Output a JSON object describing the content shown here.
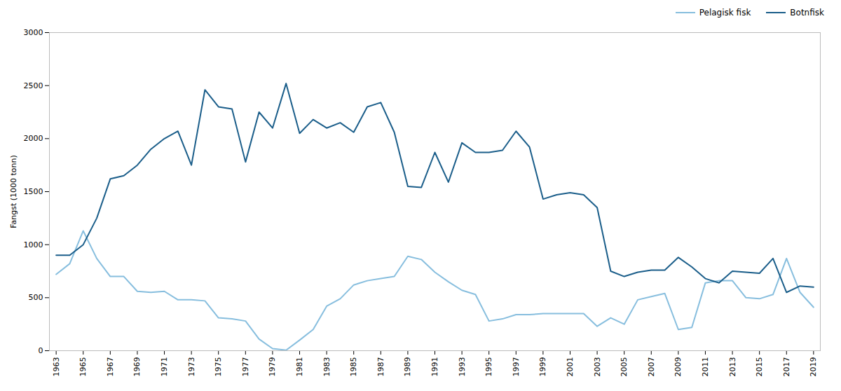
{
  "chart_data": {
    "type": "line",
    "x": [
      1963,
      1964,
      1965,
      1966,
      1967,
      1968,
      1969,
      1970,
      1971,
      1972,
      1973,
      1974,
      1975,
      1976,
      1977,
      1978,
      1979,
      1980,
      1981,
      1982,
      1983,
      1984,
      1985,
      1986,
      1987,
      1988,
      1989,
      1990,
      1991,
      1992,
      1993,
      1994,
      1995,
      1996,
      1997,
      1998,
      1999,
      2000,
      2001,
      2002,
      2003,
      2004,
      2005,
      2006,
      2007,
      2008,
      2009,
      2010,
      2011,
      2012,
      2013,
      2014,
      2015,
      2016,
      2017,
      2018,
      2019
    ],
    "series": [
      {
        "name": "Pelagisk fisk",
        "color": "#87bede",
        "values": [
          720,
          820,
          1130,
          870,
          700,
          700,
          560,
          550,
          560,
          480,
          480,
          470,
          310,
          300,
          280,
          110,
          20,
          5,
          100,
          200,
          420,
          490,
          620,
          660,
          680,
          700,
          890,
          860,
          740,
          650,
          570,
          530,
          280,
          300,
          340,
          340,
          350,
          350,
          350,
          350,
          230,
          310,
          250,
          480,
          510,
          540,
          200,
          220,
          640,
          660,
          660,
          500,
          490,
          530,
          870,
          550,
          410
        ]
      },
      {
        "name": "Botnfisk",
        "color": "#1b5e8a",
        "values": [
          900,
          900,
          1000,
          1250,
          1620,
          1650,
          1750,
          1900,
          2000,
          2070,
          1750,
          2460,
          2300,
          2280,
          1780,
          2250,
          2100,
          2520,
          2050,
          2180,
          2100,
          2150,
          2060,
          2300,
          2340,
          2060,
          1550,
          1540,
          1870,
          1590,
          1960,
          1870,
          1870,
          1890,
          2070,
          1920,
          1430,
          1470,
          1490,
          1470,
          1350,
          750,
          700,
          740,
          760,
          760,
          880,
          790,
          680,
          640,
          750,
          740,
          730,
          870,
          550,
          610,
          600
        ]
      }
    ],
    "ylabel": "Fangst (1000 tonn)",
    "xlim": [
      1962.5,
      2019.5
    ],
    "xticks": [
      1963,
      1965,
      1967,
      1969,
      1971,
      1973,
      1975,
      1977,
      1979,
      1981,
      1983,
      1985,
      1987,
      1989,
      1991,
      1993,
      1995,
      1997,
      1999,
      2001,
      2003,
      2005,
      2007,
      2009,
      2011,
      2013,
      2015,
      2017,
      2019
    ],
    "ylim": [
      0,
      3000
    ],
    "yticks": [
      0,
      500,
      1000,
      1500,
      2000,
      2500,
      3000
    ],
    "grid": false,
    "legend": "upper right"
  }
}
